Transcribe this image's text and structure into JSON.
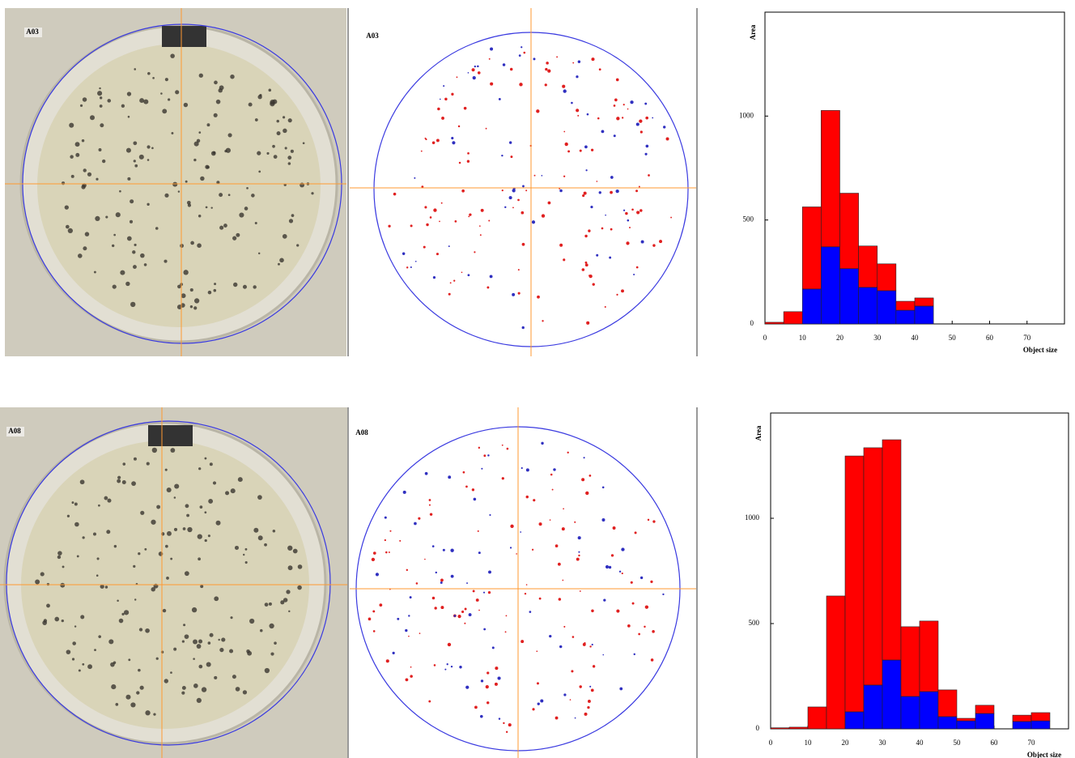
{
  "images": [
    {
      "photo_label": "A03",
      "map_label": "A03"
    },
    {
      "photo_label": "A08",
      "map_label": "A08"
    }
  ],
  "chart_data": [
    {
      "type": "histogram",
      "y_label": "Area",
      "x_label": "Object size",
      "bins": [
        0,
        5,
        10,
        15,
        20,
        25,
        30,
        35,
        40,
        45
      ],
      "series": [
        {
          "color": "#0000ff",
          "values": [
            0,
            0,
            168,
            371,
            266,
            176,
            160,
            66,
            86
          ]
        },
        {
          "color": "#ff0000",
          "values": [
            8,
            59,
            395,
            656,
            363,
            199,
            129,
            43,
            39
          ]
        }
      ],
      "xlim": [
        0,
        80
      ],
      "xticks": [
        0,
        10,
        20,
        30,
        40,
        50,
        60,
        70
      ],
      "ylim": [
        0,
        1500
      ],
      "yticks": [
        0,
        500,
        1000
      ],
      "grid": false
    },
    {
      "type": "histogram",
      "y_label": "Area",
      "x_label": "Object size",
      "bins": [
        0,
        5,
        10,
        15,
        20,
        25,
        30,
        35,
        40,
        45,
        50,
        55,
        60,
        65,
        70,
        75
      ],
      "series": [
        {
          "color": "#0000ff",
          "values": [
            0,
            0,
            0,
            0,
            81,
            208,
            327,
            154,
            177,
            58,
            38,
            73,
            0,
            35,
            38
          ]
        },
        {
          "color": "#ff0000",
          "values": [
            5,
            8,
            104,
            631,
            1215,
            1127,
            1046,
            331,
            335,
            127,
            12,
            39,
            0,
            30,
            39
          ]
        }
      ],
      "xlim": [
        0,
        80
      ],
      "xticks": [
        0,
        10,
        20,
        30,
        40,
        50,
        60,
        70
      ],
      "ylim": [
        0,
        1500
      ],
      "yticks": [
        0,
        500,
        1000
      ],
      "grid": false
    }
  ]
}
